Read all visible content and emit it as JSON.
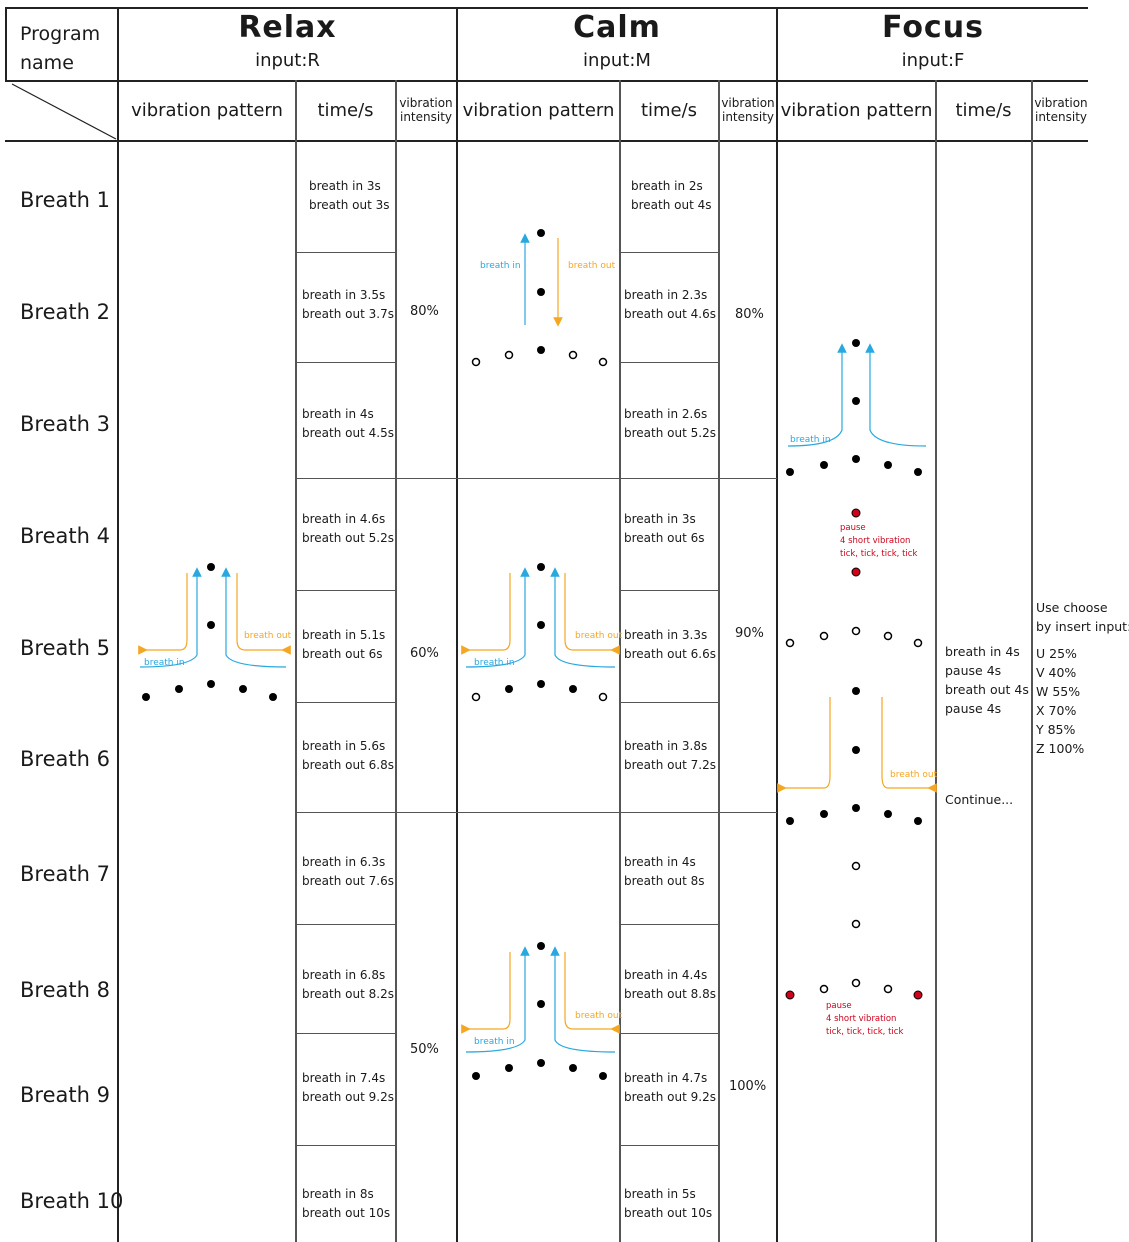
{
  "header": {
    "program_name_label": "Program name",
    "col_pattern_label": "vibration pattern",
    "col_time_label": "time/s",
    "col_intensity_label": "vibration intensity"
  },
  "programs": [
    {
      "title": "Relax",
      "input": "input:R",
      "times": [
        [
          "breath in 3s",
          "breath out 3s"
        ],
        [
          "breath in 3.5s",
          "breath out 3.7s"
        ],
        [
          "breath in 4s",
          "breath out 4.5s"
        ],
        [
          "breath in 4.6s",
          "breath out 5.2s"
        ],
        [
          "breath in 5.1s",
          "breath out 6s"
        ],
        [
          "breath in 5.6s",
          "breath out 6.8s"
        ],
        [
          "breath in 6.3s",
          "breath out 7.6s"
        ],
        [
          "breath in 6.8s",
          "breath out 8.2s"
        ],
        [
          "breath in 7.4s",
          "breath out 9.2s"
        ],
        [
          "breath in 8s",
          "breath out 10s"
        ]
      ],
      "intensities": [
        "80%",
        "60%",
        "50%"
      ]
    },
    {
      "title": "Calm",
      "input": "input:M",
      "times": [
        [
          "breath in 2s",
          "breath out 4s"
        ],
        [
          "breath in 2.3s",
          "breath out 4.6s"
        ],
        [
          "breath in 2.6s",
          "breath out 5.2s"
        ],
        [
          "breath in 3s",
          "breath out 6s"
        ],
        [
          "breath in 3.3s",
          "breath out 6.6s"
        ],
        [
          "breath in 3.8s",
          "breath out 7.2s"
        ],
        [
          "breath in 4s",
          "breath out 8s"
        ],
        [
          "breath in 4.4s",
          "breath out 8.8s"
        ],
        [
          "breath in 4.7s",
          "breath out 9.2s"
        ],
        [
          "breath in 5s",
          "breath out 10s"
        ]
      ],
      "intensities": [
        "80%",
        "90%",
        "100%"
      ]
    },
    {
      "title": "Focus",
      "input": "input:F",
      "time_steps": [
        "breath in 4s",
        "pause 4s",
        "breath out 4s",
        "pause 4s"
      ],
      "continue_label": "Continue...",
      "intensity_note": {
        "title_lines": [
          "Use choose",
          "by insert input:"
        ],
        "options": [
          "U  25%",
          "V  40%",
          "W  55%",
          "X  70%",
          "Y  85%",
          "Z  100%"
        ]
      }
    }
  ],
  "rows": [
    "Breath 1",
    "Breath 2",
    "Breath 3",
    "Breath 4",
    "Breath 5",
    "Breath 6",
    "Breath 7",
    "Breath 8",
    "Breath 9",
    "Breath 10"
  ],
  "diagram_labels": {
    "breath_in": "breath in",
    "breath_out": "breath out",
    "pause": "pause",
    "short_vibration": "4 short vibration",
    "ticks": "tick, tick, tick, tick"
  },
  "colors": {
    "breath_in": "#29a8e0",
    "breath_out": "#f5a623",
    "pause": "#d0021b",
    "ink": "#000000"
  }
}
